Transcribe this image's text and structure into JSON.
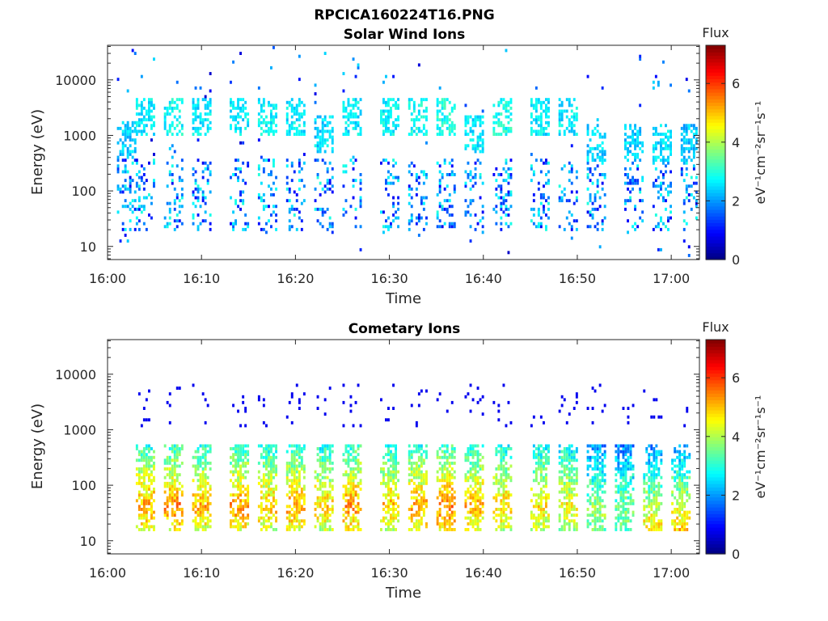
{
  "figure_title": "RPCICA160224T16.PNG",
  "colorbar": {
    "header": "Flux",
    "unit_label": "eV⁻¹cm⁻²sr⁻¹s⁻¹",
    "ticks": [
      "0",
      "2",
      "4",
      "6"
    ],
    "range": [
      0,
      7.3
    ],
    "colormap": "jet"
  },
  "chart_data": [
    {
      "type": "heatmap",
      "title": "Solar Wind Ions",
      "xlabel": "Time",
      "ylabel": "Energy (eV)",
      "x_ticks": [
        "16:00",
        "16:10",
        "16:20",
        "16:30",
        "16:40",
        "16:50",
        "17:00"
      ],
      "x_range": [
        "16:00",
        "17:03"
      ],
      "y_scale": "log",
      "y_ticks": [
        "10",
        "100",
        "1000",
        "10000"
      ],
      "y_range": [
        5.8,
        42000
      ],
      "z_range": [
        0,
        7.3
      ],
      "bursts": [
        {
          "t": "16:02",
          "e_peak": 800,
          "flux": 2.8
        },
        {
          "t": "16:04",
          "e_peak": 2000,
          "flux": 3.0
        },
        {
          "t": "16:07",
          "e_peak": 2000,
          "flux": 3.2
        },
        {
          "t": "16:10",
          "e_peak": 2000,
          "flux": 3.0
        },
        {
          "t": "16:14",
          "e_peak": 2000,
          "flux": 3.0
        },
        {
          "t": "16:17",
          "e_peak": 2000,
          "flux": 3.1
        },
        {
          "t": "16:20",
          "e_peak": 2000,
          "flux": 3.0
        },
        {
          "t": "16:23",
          "e_peak": 1000,
          "flux": 2.9
        },
        {
          "t": "16:26",
          "e_peak": 2000,
          "flux": 3.0
        },
        {
          "t": "16:30",
          "e_peak": 2000,
          "flux": 3.1
        },
        {
          "t": "16:33",
          "e_peak": 2000,
          "flux": 3.2
        },
        {
          "t": "16:36",
          "e_peak": 2000,
          "flux": 3.3
        },
        {
          "t": "16:39",
          "e_peak": 1000,
          "flux": 3.0
        },
        {
          "t": "16:42",
          "e_peak": 2000,
          "flux": 3.3
        },
        {
          "t": "16:46",
          "e_peak": 2000,
          "flux": 3.0
        },
        {
          "t": "16:49",
          "e_peak": 2000,
          "flux": 3.0
        },
        {
          "t": "16:52",
          "e_peak": 700,
          "flux": 2.8
        },
        {
          "t": "16:56",
          "e_peak": 700,
          "flux": 2.8
        },
        {
          "t": "16:59",
          "e_peak": 700,
          "flux": 2.9
        },
        {
          "t": "17:02",
          "e_peak": 700,
          "flux": 2.7
        }
      ]
    },
    {
      "type": "heatmap",
      "title": "Cometary Ions",
      "xlabel": "Time",
      "ylabel": "Energy (eV)",
      "x_ticks": [
        "16:00",
        "16:10",
        "16:20",
        "16:30",
        "16:40",
        "16:50",
        "17:00"
      ],
      "x_range": [
        "16:00",
        "17:03"
      ],
      "y_scale": "log",
      "y_ticks": [
        "10",
        "100",
        "1000",
        "10000"
      ],
      "y_range": [
        5.8,
        42000
      ],
      "z_range": [
        0,
        7.3
      ],
      "bursts": [
        {
          "t": "16:04",
          "e_peak": 40,
          "flux": 5.8
        },
        {
          "t": "16:07",
          "e_peak": 40,
          "flux": 6.0
        },
        {
          "t": "16:10",
          "e_peak": 40,
          "flux": 5.7
        },
        {
          "t": "16:14",
          "e_peak": 40,
          "flux": 5.9
        },
        {
          "t": "16:17",
          "e_peak": 40,
          "flux": 5.6
        },
        {
          "t": "16:20",
          "e_peak": 40,
          "flux": 5.8
        },
        {
          "t": "16:23",
          "e_peak": 40,
          "flux": 5.5
        },
        {
          "t": "16:26",
          "e_peak": 40,
          "flux": 5.9
        },
        {
          "t": "16:30",
          "e_peak": 40,
          "flux": 5.6
        },
        {
          "t": "16:33",
          "e_peak": 40,
          "flux": 5.8
        },
        {
          "t": "16:36",
          "e_peak": 40,
          "flux": 6.1
        },
        {
          "t": "16:39",
          "e_peak": 40,
          "flux": 5.7
        },
        {
          "t": "16:42",
          "e_peak": 40,
          "flux": 5.5
        },
        {
          "t": "16:46",
          "e_peak": 40,
          "flux": 5.3
        },
        {
          "t": "16:49",
          "e_peak": 40,
          "flux": 5.2
        },
        {
          "t": "16:52",
          "e_peak": 30,
          "flux": 4.5
        },
        {
          "t": "16:55",
          "e_peak": 30,
          "flux": 4.3
        },
        {
          "t": "16:58",
          "e_peak": 15,
          "flux": 5.4
        },
        {
          "t": "17:01",
          "e_peak": 15,
          "flux": 5.6
        }
      ]
    }
  ]
}
